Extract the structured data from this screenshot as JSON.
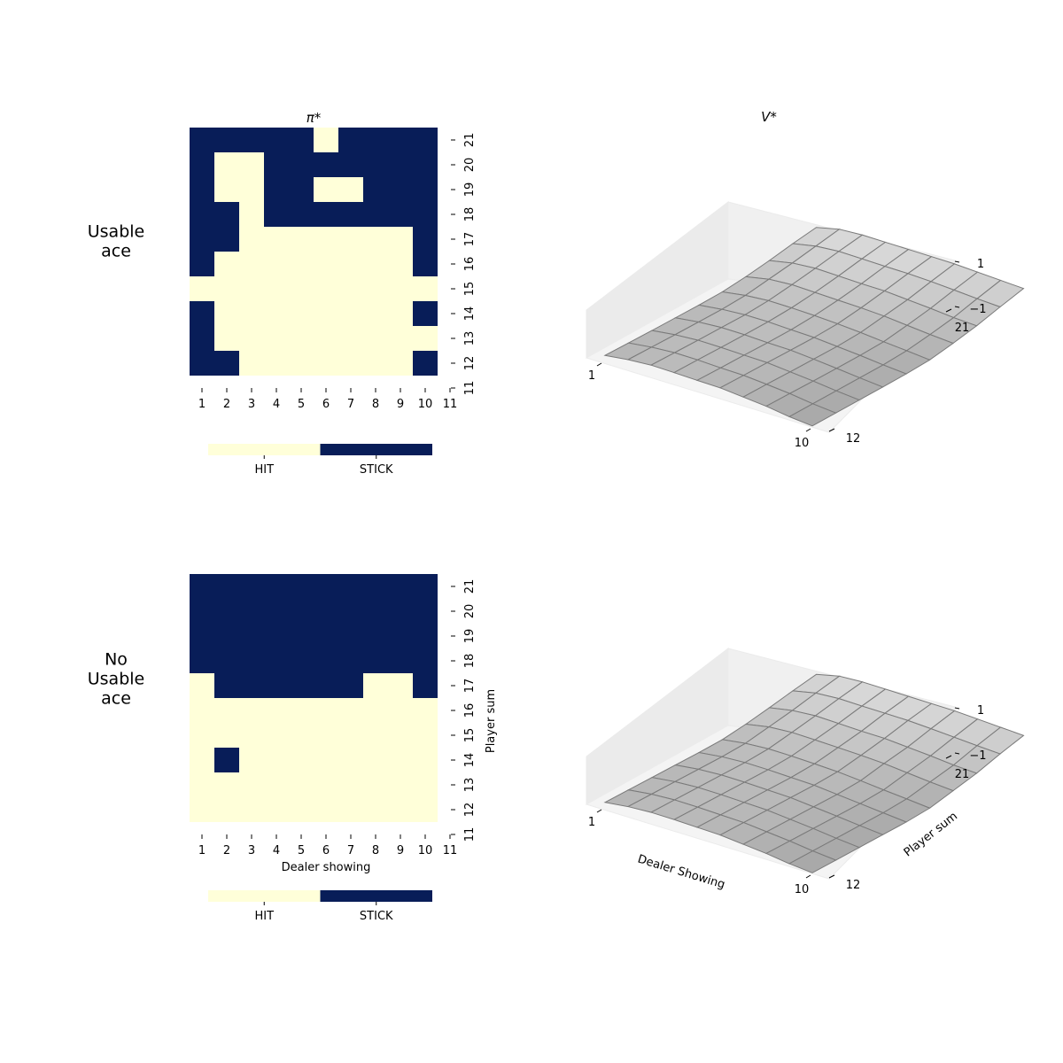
{
  "chart_data": [
    {
      "type": "heatmap",
      "panel": "policy-usable-ace",
      "row_label_lines": [
        "Usable",
        "ace"
      ],
      "title": "π*",
      "x_ticks": [
        "1",
        "2",
        "3",
        "4",
        "5",
        "6",
        "7",
        "8",
        "9",
        "10",
        "11"
      ],
      "y_ticks": [
        "11",
        "12",
        "13",
        "14",
        "15",
        "16",
        "17",
        "18",
        "19",
        "20",
        "21"
      ],
      "xlabel": "",
      "ylabel": "",
      "colorbar": {
        "labels": [
          "HIT",
          "STICK"
        ],
        "colors": [
          "#ffffd9",
          "#081d58"
        ]
      },
      "rows_top_to_bottom": [
        [
          1,
          1,
          1,
          1,
          1,
          0,
          1,
          1,
          1,
          1
        ],
        [
          1,
          0,
          0,
          1,
          1,
          1,
          1,
          1,
          1,
          1
        ],
        [
          1,
          0,
          0,
          1,
          1,
          0,
          0,
          1,
          1,
          1
        ],
        [
          1,
          1,
          0,
          1,
          1,
          1,
          1,
          1,
          1,
          1
        ],
        [
          1,
          1,
          0,
          0,
          0,
          0,
          0,
          0,
          0,
          1
        ],
        [
          1,
          0,
          0,
          0,
          0,
          0,
          0,
          0,
          0,
          1
        ],
        [
          0,
          0,
          0,
          0,
          0,
          0,
          0,
          0,
          0,
          0
        ],
        [
          1,
          0,
          0,
          0,
          0,
          0,
          0,
          0,
          0,
          1
        ],
        [
          1,
          0,
          0,
          0,
          0,
          0,
          0,
          0,
          0,
          0
        ],
        [
          1,
          1,
          0,
          0,
          0,
          0,
          0,
          0,
          0,
          1
        ]
      ]
    },
    {
      "type": "heatmap",
      "panel": "policy-no-usable-ace",
      "row_label_lines": [
        "No",
        "Usable",
        "ace"
      ],
      "title": "",
      "x_ticks": [
        "1",
        "2",
        "3",
        "4",
        "5",
        "6",
        "7",
        "8",
        "9",
        "10",
        "11"
      ],
      "y_ticks": [
        "11",
        "12",
        "13",
        "14",
        "15",
        "16",
        "17",
        "18",
        "19",
        "20",
        "21"
      ],
      "xlabel": "Dealer showing",
      "ylabel": "Player sum",
      "colorbar": {
        "labels": [
          "HIT",
          "STICK"
        ],
        "colors": [
          "#ffffd9",
          "#081d58"
        ]
      },
      "rows_top_to_bottom": [
        [
          1,
          1,
          1,
          1,
          1,
          1,
          1,
          1,
          1,
          1
        ],
        [
          1,
          1,
          1,
          1,
          1,
          1,
          1,
          1,
          1,
          1
        ],
        [
          1,
          1,
          1,
          1,
          1,
          1,
          1,
          1,
          1,
          1
        ],
        [
          1,
          1,
          1,
          1,
          1,
          1,
          1,
          1,
          1,
          1
        ],
        [
          0,
          1,
          1,
          1,
          1,
          1,
          1,
          0,
          0,
          1
        ],
        [
          0,
          0,
          0,
          0,
          0,
          0,
          0,
          0,
          0,
          0
        ],
        [
          0,
          0,
          0,
          0,
          0,
          0,
          0,
          0,
          0,
          0
        ],
        [
          0,
          1,
          0,
          0,
          0,
          0,
          0,
          0,
          0,
          0
        ],
        [
          0,
          0,
          0,
          0,
          0,
          0,
          0,
          0,
          0,
          0
        ],
        [
          0,
          0,
          0,
          0,
          0,
          0,
          0,
          0,
          0,
          0
        ]
      ]
    },
    {
      "type": "surface",
      "panel": "value-usable-ace",
      "title": "V*",
      "x_ticks": [
        "1",
        "10"
      ],
      "y_ticks": [
        "12",
        "21"
      ],
      "z_ticks": [
        "1",
        "−1"
      ],
      "xlabel": "",
      "ylabel": "",
      "zlim": [
        -1,
        1
      ],
      "dealer": [
        1,
        2,
        3,
        4,
        5,
        6,
        7,
        8,
        9,
        10
      ],
      "player": [
        12,
        13,
        14,
        15,
        16,
        17,
        18,
        19,
        20,
        21
      ],
      "values_by_player_row": [
        [
          -0.4,
          -0.3,
          -0.25,
          -0.28,
          -0.32,
          -0.35,
          -0.45,
          -0.55,
          -0.7,
          -0.8
        ],
        [
          -0.38,
          -0.28,
          -0.23,
          -0.25,
          -0.3,
          -0.33,
          -0.42,
          -0.52,
          -0.66,
          -0.76
        ],
        [
          -0.36,
          -0.26,
          -0.21,
          -0.23,
          -0.27,
          -0.3,
          -0.4,
          -0.5,
          -0.62,
          -0.72
        ],
        [
          -0.33,
          -0.23,
          -0.18,
          -0.2,
          -0.25,
          -0.28,
          -0.37,
          -0.47,
          -0.58,
          -0.68
        ],
        [
          -0.3,
          -0.2,
          -0.15,
          -0.16,
          -0.21,
          -0.25,
          -0.34,
          -0.43,
          -0.54,
          -0.63
        ],
        [
          -0.25,
          -0.12,
          -0.06,
          -0.08,
          -0.12,
          -0.18,
          -0.26,
          -0.36,
          -0.45,
          -0.55
        ],
        [
          -0.12,
          0.05,
          0.1,
          0.06,
          0.02,
          -0.02,
          -0.08,
          -0.18,
          -0.28,
          -0.36
        ],
        [
          0.05,
          0.22,
          0.28,
          0.24,
          0.2,
          0.18,
          0.1,
          0.02,
          -0.08,
          -0.14
        ],
        [
          0.25,
          0.42,
          0.48,
          0.45,
          0.42,
          0.4,
          0.35,
          0.28,
          0.2,
          0.14
        ],
        [
          0.42,
          0.62,
          0.66,
          0.64,
          0.62,
          0.6,
          0.58,
          0.52,
          0.46,
          0.4
        ]
      ]
    },
    {
      "type": "surface",
      "panel": "value-no-usable-ace",
      "title": "",
      "x_ticks": [
        "1",
        "10"
      ],
      "y_ticks": [
        "12",
        "21"
      ],
      "z_ticks": [
        "1",
        "−1"
      ],
      "xlabel": "Dealer Showing",
      "ylabel": "Player sum",
      "zlim": [
        -1,
        1
      ],
      "dealer": [
        1,
        2,
        3,
        4,
        5,
        6,
        7,
        8,
        9,
        10
      ],
      "player": [
        12,
        13,
        14,
        15,
        16,
        17,
        18,
        19,
        20,
        21
      ],
      "values_by_player_row": [
        [
          -0.42,
          -0.32,
          -0.28,
          -0.3,
          -0.34,
          -0.38,
          -0.48,
          -0.58,
          -0.72,
          -0.82
        ],
        [
          -0.4,
          -0.3,
          -0.26,
          -0.28,
          -0.32,
          -0.36,
          -0.46,
          -0.56,
          -0.69,
          -0.79
        ],
        [
          -0.38,
          -0.28,
          -0.24,
          -0.26,
          -0.3,
          -0.34,
          -0.44,
          -0.54,
          -0.66,
          -0.76
        ],
        [
          -0.36,
          -0.26,
          -0.22,
          -0.24,
          -0.28,
          -0.32,
          -0.42,
          -0.52,
          -0.63,
          -0.73
        ],
        [
          -0.34,
          -0.24,
          -0.2,
          -0.22,
          -0.26,
          -0.3,
          -0.4,
          -0.5,
          -0.6,
          -0.7
        ],
        [
          -0.3,
          -0.18,
          -0.13,
          -0.15,
          -0.19,
          -0.24,
          -0.33,
          -0.43,
          -0.52,
          -0.62
        ],
        [
          -0.16,
          0.0,
          0.05,
          0.02,
          -0.02,
          -0.06,
          -0.12,
          -0.22,
          -0.32,
          -0.4
        ],
        [
          0.02,
          0.18,
          0.24,
          0.2,
          0.16,
          0.14,
          0.06,
          -0.02,
          -0.12,
          -0.18
        ],
        [
          0.22,
          0.4,
          0.45,
          0.42,
          0.4,
          0.38,
          0.32,
          0.25,
          0.18,
          0.12
        ],
        [
          0.4,
          0.6,
          0.64,
          0.62,
          0.6,
          0.58,
          0.56,
          0.5,
          0.44,
          0.38
        ]
      ]
    }
  ]
}
